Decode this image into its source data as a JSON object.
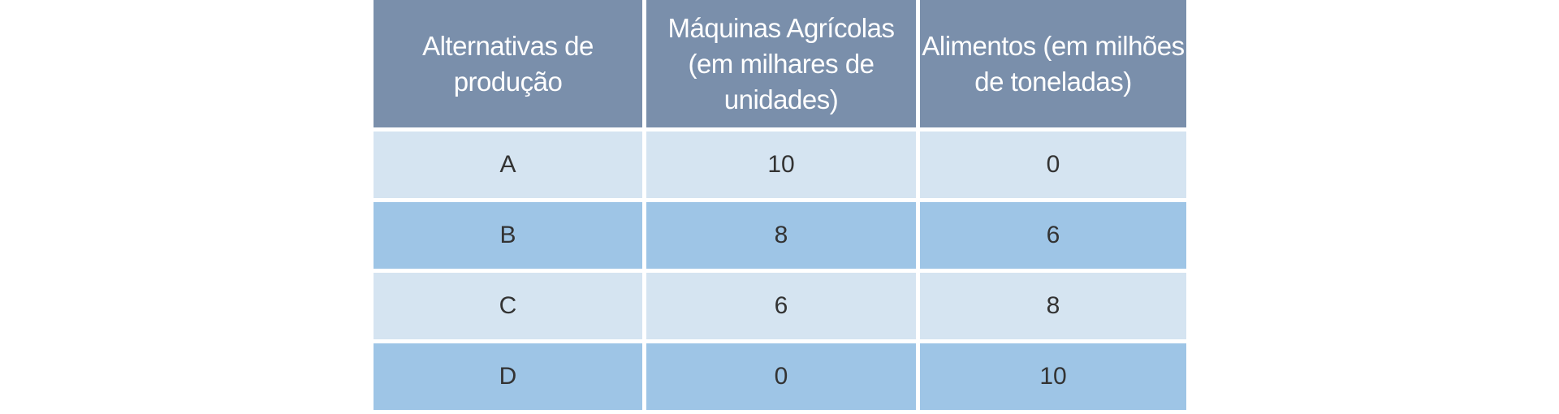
{
  "table": {
    "headers": [
      "Alternativas de produção",
      "Máquinas Agrícolas (em milhares de unidades)",
      "Alimentos (em milhões de toneladas)"
    ],
    "rows": [
      [
        "A",
        "10",
        "0"
      ],
      [
        "B",
        "8",
        "6"
      ],
      [
        "C",
        "6",
        "8"
      ],
      [
        "D",
        "0",
        "10"
      ]
    ]
  },
  "colors": {
    "header_bg": "#7a8fab",
    "row_light": "#d5e4f1",
    "row_dark": "#9ec5e6"
  }
}
